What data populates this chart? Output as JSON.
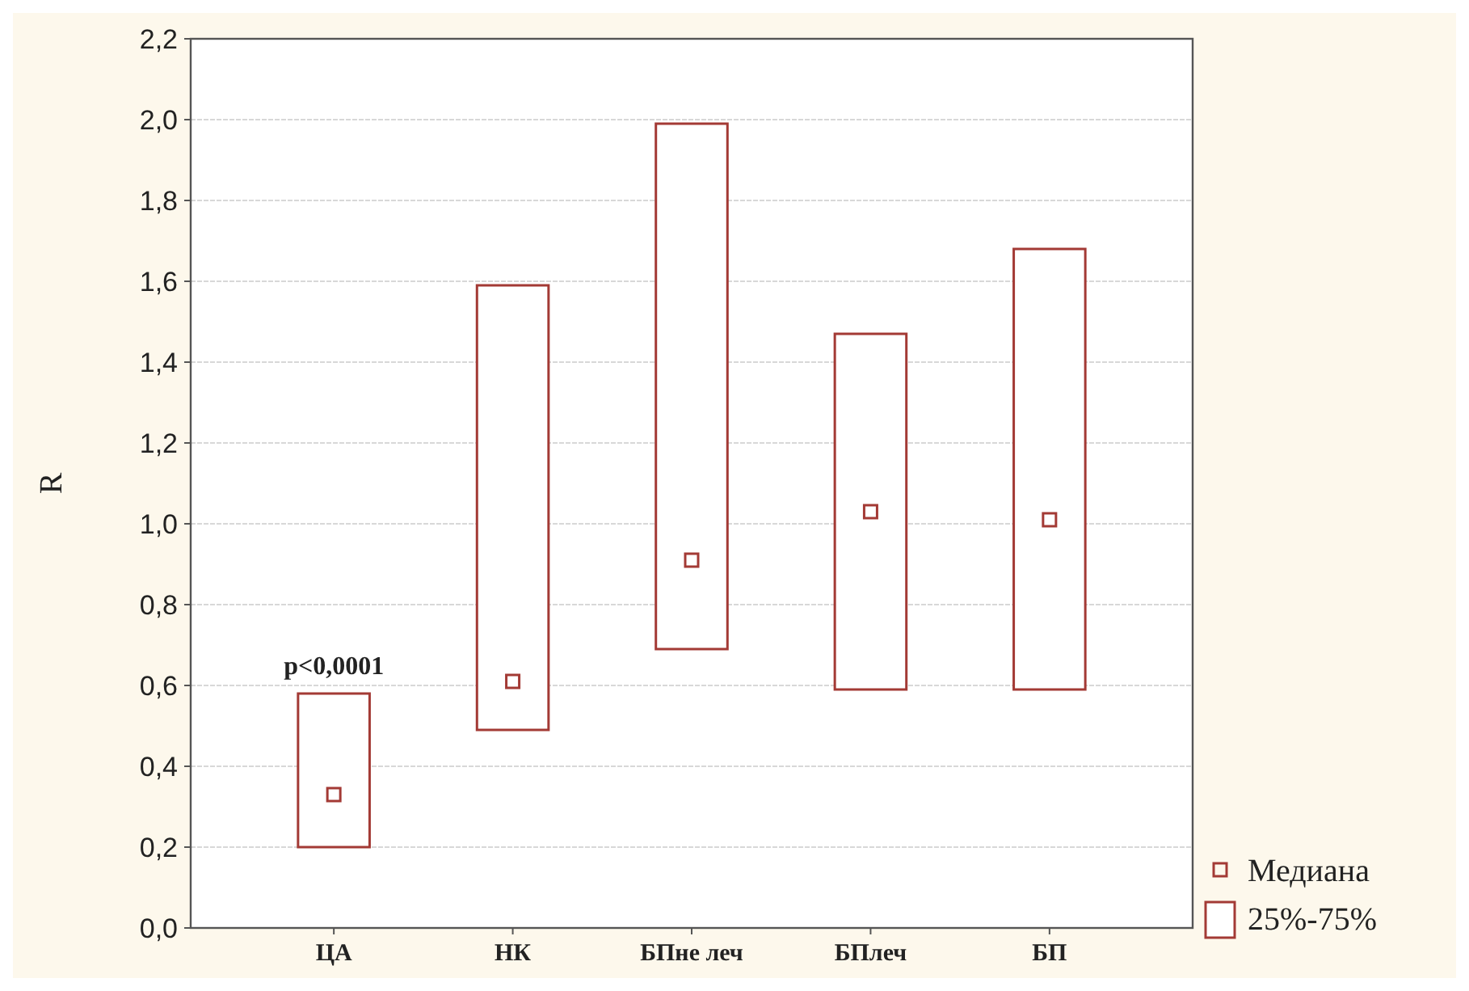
{
  "chart_data": {
    "type": "box",
    "ylabel": "R",
    "categories": [
      "ЦА",
      "НК",
      "БПне леч",
      "БПлеч",
      "БП"
    ],
    "series": [
      {
        "name": "25%-75%",
        "color": "#a33a35",
        "boxes": [
          {
            "low": 0.2,
            "q1": 0.2,
            "median": 0.33,
            "q3": 0.58,
            "high": 0.58
          },
          {
            "low": 0.49,
            "q1": 0.49,
            "median": 0.61,
            "q3": 1.59,
            "high": 1.59
          },
          {
            "low": 0.69,
            "q1": 0.69,
            "median": 0.91,
            "q3": 1.99,
            "high": 1.99
          },
          {
            "low": 0.59,
            "q1": 0.59,
            "median": 1.03,
            "q3": 1.47,
            "high": 1.47
          },
          {
            "low": 0.59,
            "q1": 0.59,
            "median": 1.01,
            "q3": 1.68,
            "high": 1.68
          }
        ]
      }
    ],
    "ylim": [
      0,
      2.2
    ],
    "yticks": [
      {
        "value": 0,
        "label": "0,0"
      },
      {
        "value": 0.2,
        "label": "0,2"
      },
      {
        "value": 0.4,
        "label": "0,4"
      },
      {
        "value": 0.6,
        "label": "0,6"
      },
      {
        "value": 0.8,
        "label": "0,8"
      },
      {
        "value": 1,
        "label": "1,0"
      },
      {
        "value": 1.2,
        "label": "1,2"
      },
      {
        "value": 1.4,
        "label": "1,4"
      },
      {
        "value": 1.6,
        "label": "1,6"
      },
      {
        "value": 1.8,
        "label": "1,8"
      },
      {
        "value": 2,
        "label": "2,0"
      },
      {
        "value": 2.2,
        "label": "2,2"
      }
    ],
    "grid": "y",
    "legend": "bottom right",
    "annotations": [
      "p<0,0001",
      "Медиана"
    ]
  }
}
